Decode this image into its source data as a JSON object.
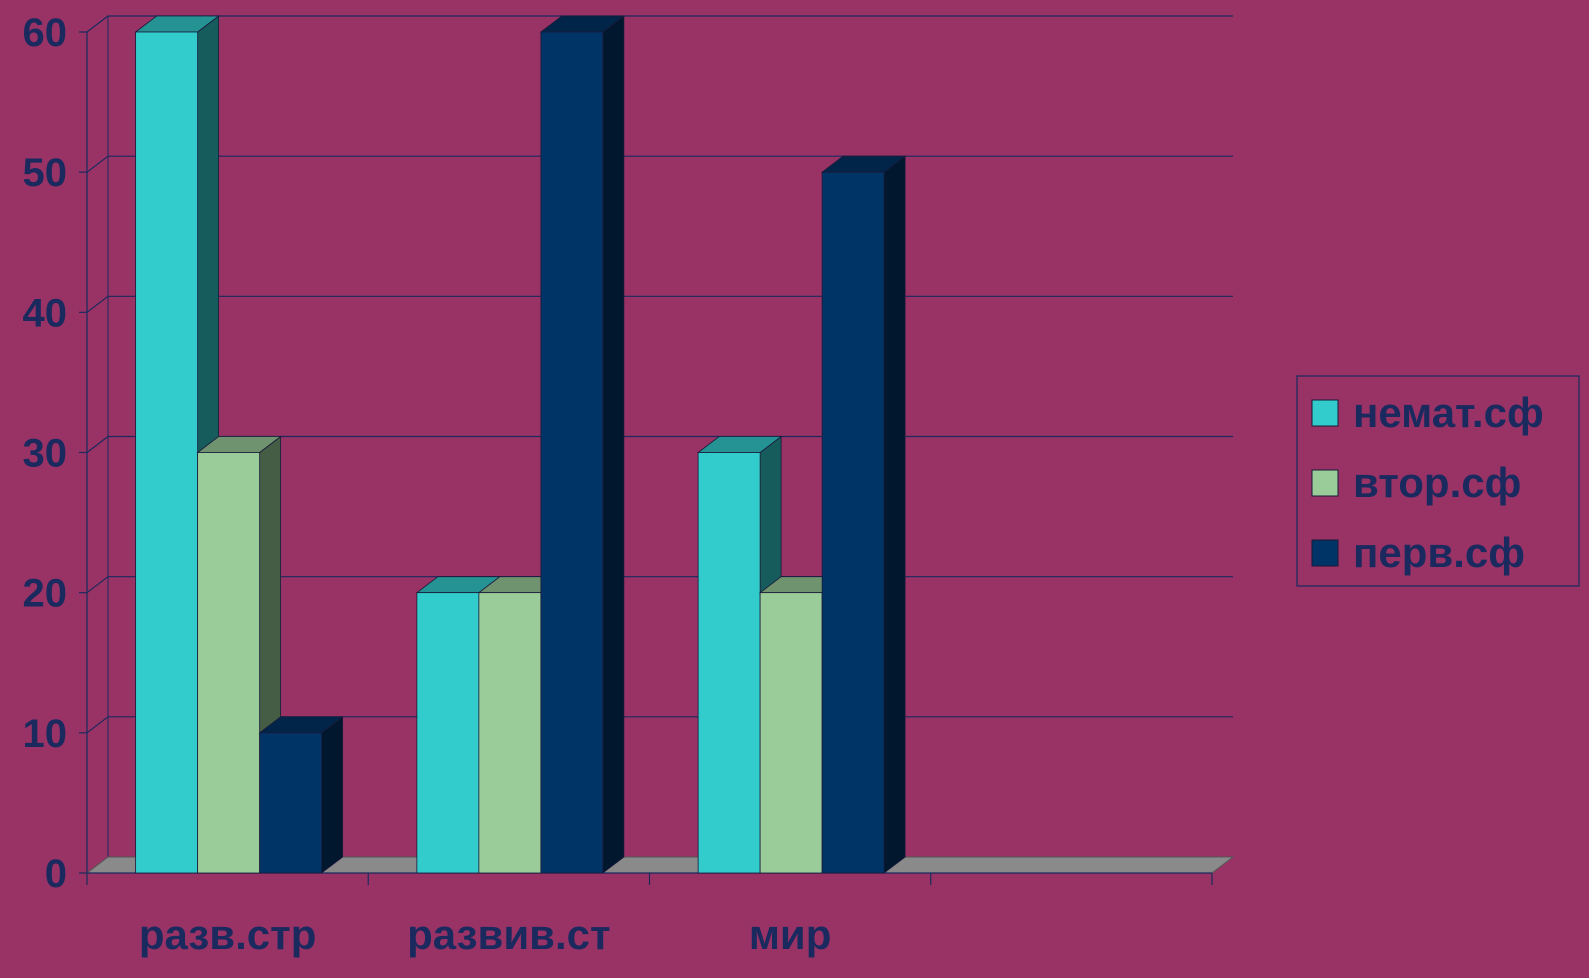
{
  "chart_data": {
    "type": "bar",
    "categories": [
      "разв.стр",
      "развив.ст",
      "мир",
      ""
    ],
    "series": [
      {
        "name": "немат.сф",
        "values": [
          60,
          20,
          30,
          null
        ],
        "color": "#33CCCC"
      },
      {
        "name": "втор.сф",
        "values": [
          30,
          20,
          20,
          null
        ],
        "color": "#99CC99"
      },
      {
        "name": "перв.сф",
        "values": [
          10,
          60,
          50,
          null
        ],
        "color": "#003366"
      }
    ],
    "title": "",
    "xlabel": "",
    "ylabel": "",
    "ylim": [
      0,
      60
    ],
    "yticks": [
      0,
      10,
      20,
      30,
      40,
      50,
      60
    ],
    "grid": true,
    "legend": "right",
    "style": "3d-column"
  },
  "colors": {
    "background": "#993366",
    "gridline": "#1a2a5e",
    "floor": "#8a8a8a",
    "text": "#1a2a5e"
  }
}
